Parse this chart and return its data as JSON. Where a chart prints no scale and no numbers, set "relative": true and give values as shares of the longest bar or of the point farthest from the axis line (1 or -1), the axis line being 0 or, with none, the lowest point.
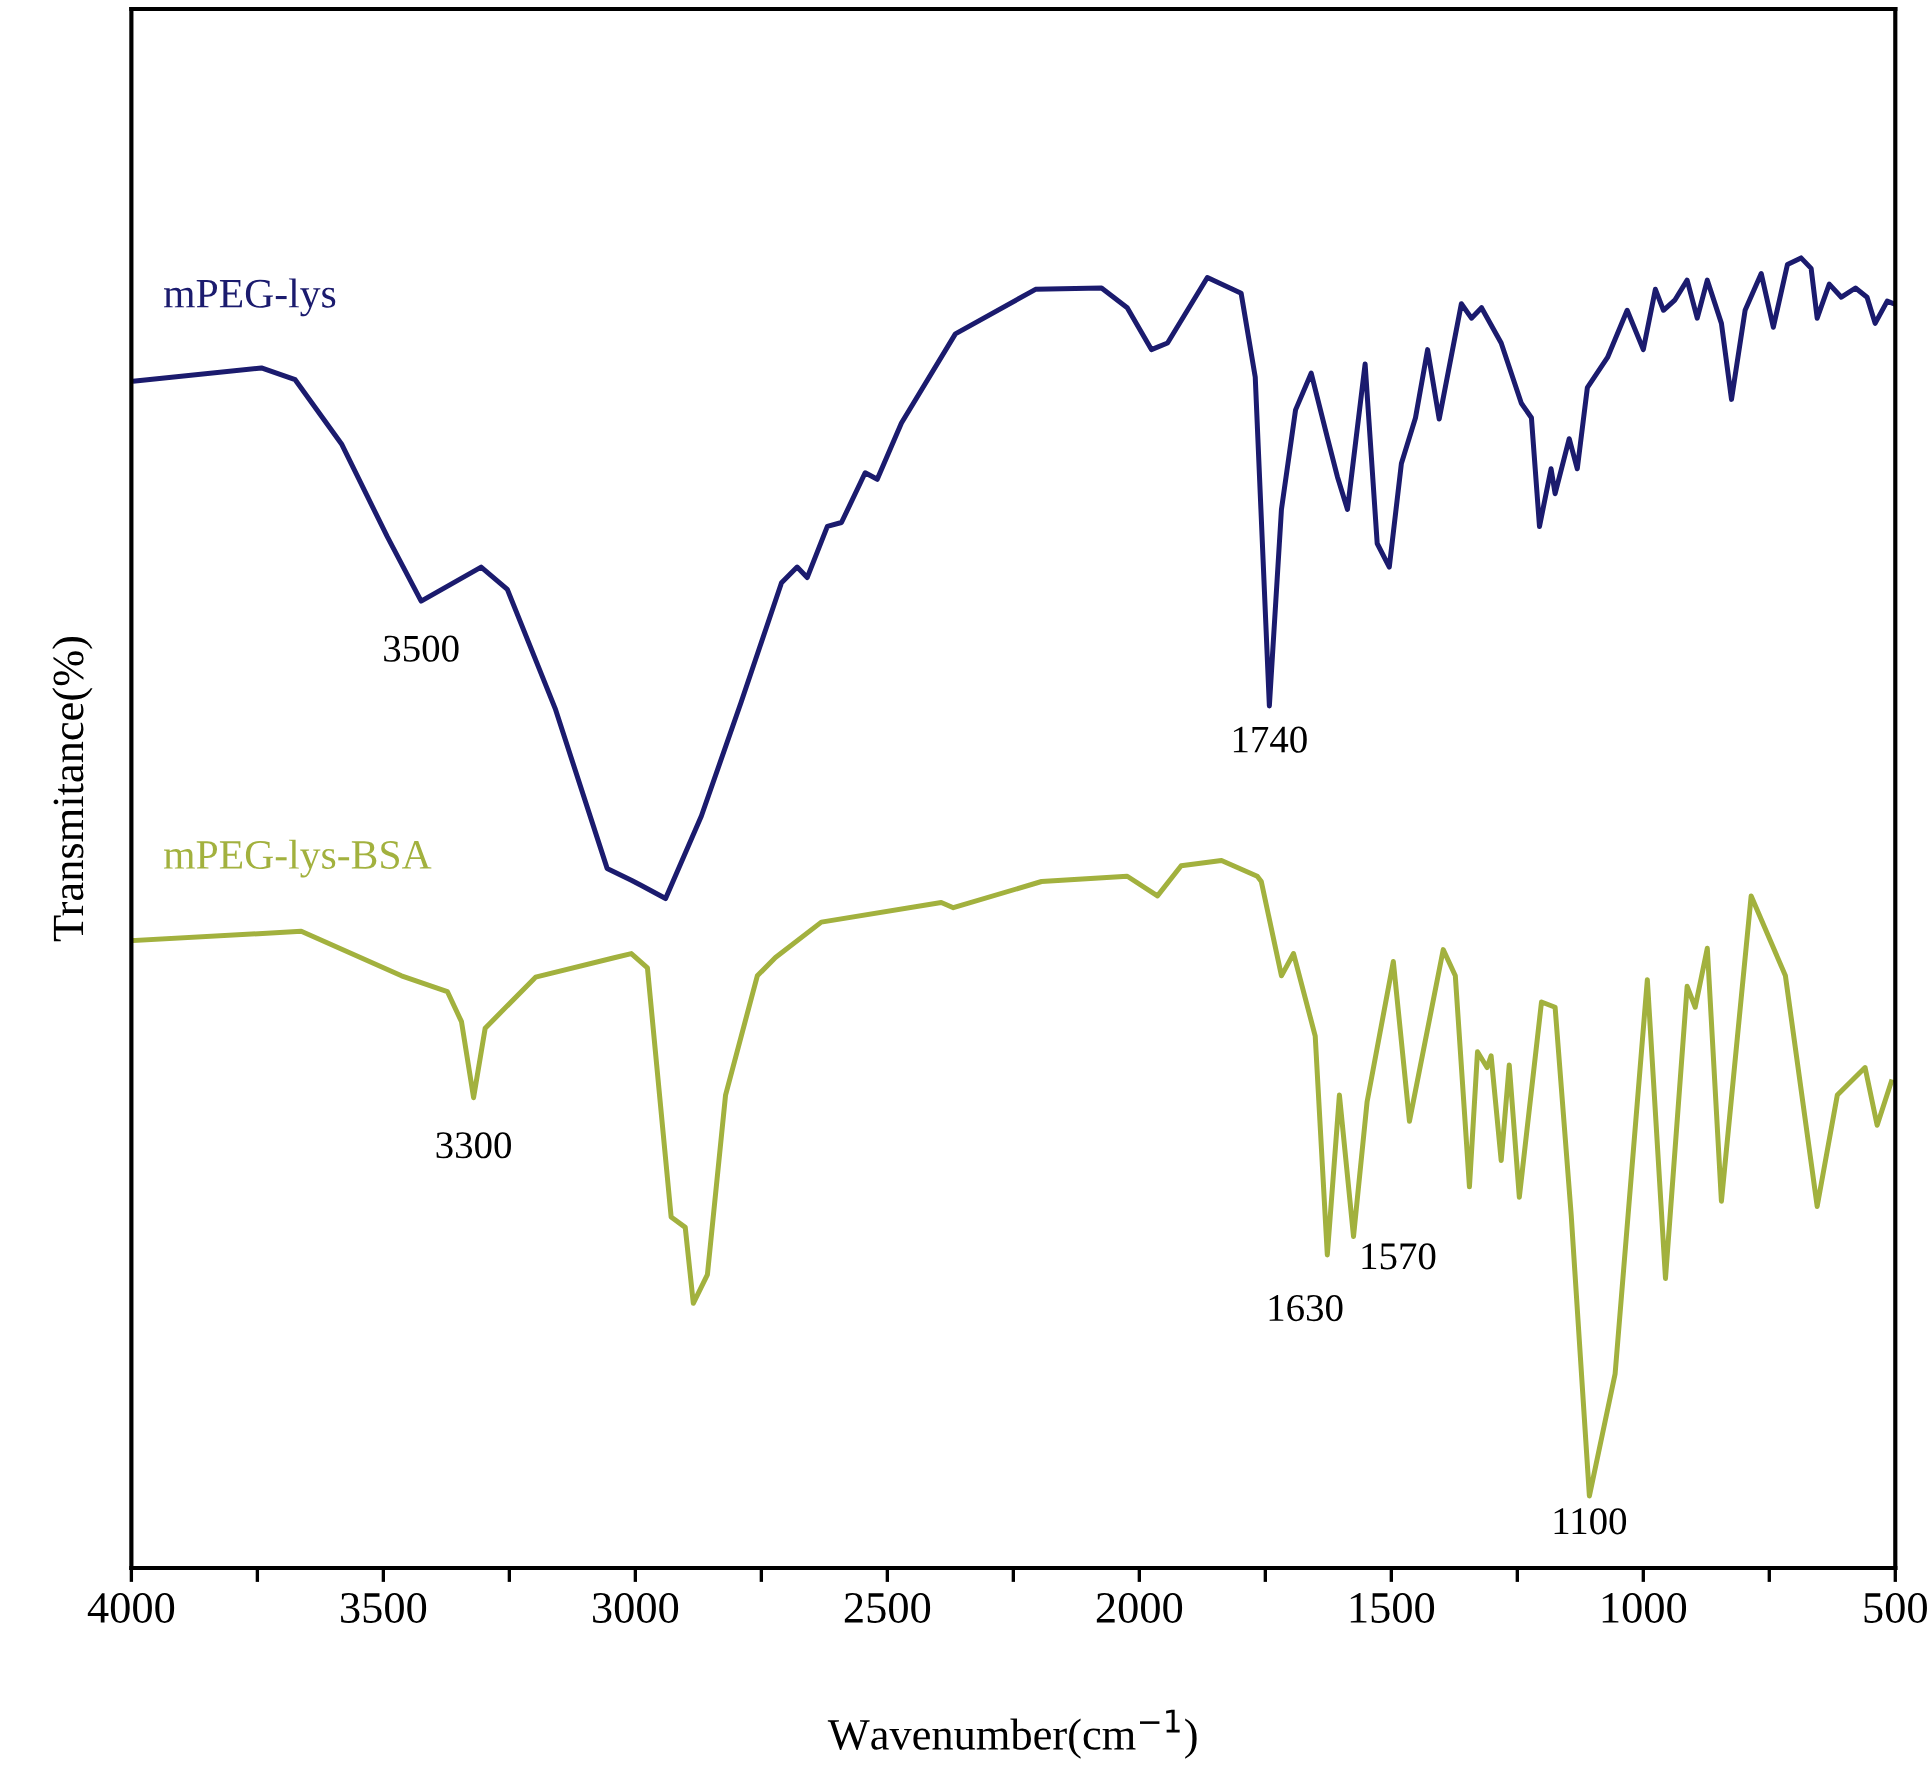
{
  "chart_data": {
    "type": "line",
    "relative": true,
    "xlabel": "Wavenumber(cm$^{−1}$)",
    "ylabel": "Transmitance(%)",
    "xlim": [
      4000,
      500
    ],
    "xticks": [
      4000,
      {
        "value": 3750,
        "label": null
      },
      3500,
      {
        "value": 3250,
        "label": null
      },
      3000,
      {
        "value": 2750,
        "label": null
      },
      2500,
      {
        "value": 2250,
        "label": null
      },
      2000,
      {
        "value": 1750,
        "label": null
      },
      1500,
      {
        "value": 1250,
        "label": null
      },
      1000,
      {
        "value": 750,
        "label": null
      },
      500
    ],
    "grid": false,
    "legend": false,
    "tick_labels": "x",
    "line_style": "solid",
    "marker": "none",
    "series": [
      {
        "name": "mPEG-lys",
        "color": "#1b1b6e",
        "x": [
          3992,
          3742,
          3675,
          3583,
          3492,
          3425,
          3306,
          3254,
          3159,
          3056,
          3008,
          2988,
          2940,
          2869,
          2790,
          2710,
          2679,
          2659,
          2619,
          2591,
          2544,
          2520,
          2472,
          2365,
          2206,
          2075,
          2024,
          1976,
          1944,
          1865,
          1798,
          1770,
          1742,
          1718,
          1690,
          1659,
          1627,
          1607,
          1587,
          1552,
          1528,
          1504,
          1480,
          1452,
          1428,
          1405,
          1361,
          1341,
          1321,
          1282,
          1242,
          1222,
          1206,
          1183,
          1175,
          1147,
          1131,
          1111,
          1071,
          1032,
          1000,
          976,
          960,
          937,
          913,
          893,
          873,
          845,
          825,
          798,
          766,
          742,
          714,
          687,
          667,
          655,
          631,
          607,
          579,
          556,
          540,
          516,
          503
        ],
        "values": [
          0.906,
          0.916,
          0.907,
          0.858,
          0.787,
          0.738,
          0.764,
          0.747,
          0.656,
          0.534,
          0.525,
          0.521,
          0.511,
          0.574,
          0.661,
          0.752,
          0.764,
          0.756,
          0.795,
          0.798,
          0.836,
          0.831,
          0.874,
          0.942,
          0.976,
          0.977,
          0.962,
          0.93,
          0.935,
          0.985,
          0.973,
          0.909,
          0.658,
          0.808,
          0.884,
          0.912,
          0.863,
          0.833,
          0.808,
          0.919,
          0.782,
          0.764,
          0.843,
          0.878,
          0.93,
          0.877,
          0.965,
          0.954,
          0.962,
          0.935,
          0.889,
          0.878,
          0.795,
          0.839,
          0.82,
          0.862,
          0.839,
          0.901,
          0.924,
          0.96,
          0.93,
          0.976,
          0.96,
          0.968,
          0.983,
          0.954,
          0.983,
          0.95,
          0.892,
          0.96,
          0.988,
          0.947,
          0.995,
          1.0,
          0.992,
          0.954,
          0.98,
          0.97,
          0.977,
          0.97,
          0.95,
          0.967,
          0.965
        ]
      },
      {
        "name": "mPEG-lys-BSA",
        "color": "#a2b13e",
        "x": [
          3992,
          3663,
          3464,
          3373,
          3345,
          3321,
          3298,
          3198,
          3040,
          3008,
          2976,
          2929,
          2901,
          2885,
          2857,
          2821,
          2758,
          2722,
          2631,
          2393,
          2369,
          2194,
          2024,
          1964,
          1917,
          1837,
          1766,
          1758,
          1718,
          1694,
          1651,
          1627,
          1603,
          1575,
          1548,
          1496,
          1464,
          1397,
          1373,
          1345,
          1329,
          1310,
          1302,
          1282,
          1266,
          1246,
          1202,
          1175,
          1143,
          1107,
          1056,
          992,
          956,
          913,
          897,
          873,
          845,
          786,
          718,
          655,
          615,
          560,
          536,
          508
        ],
        "values": [
          0.479,
          0.486,
          0.452,
          0.44,
          0.417,
          0.359,
          0.412,
          0.451,
          0.466,
          0.469,
          0.458,
          0.268,
          0.26,
          0.202,
          0.224,
          0.361,
          0.452,
          0.466,
          0.493,
          0.508,
          0.504,
          0.524,
          0.528,
          0.513,
          0.536,
          0.54,
          0.528,
          0.524,
          0.452,
          0.469,
          0.406,
          0.239,
          0.361,
          0.253,
          0.356,
          0.463,
          0.341,
          0.472,
          0.452,
          0.291,
          0.394,
          0.382,
          0.391,
          0.311,
          0.384,
          0.283,
          0.432,
          0.428,
          0.269,
          0.055,
          0.148,
          0.449,
          0.221,
          0.444,
          0.428,
          0.473,
          0.28,
          0.513,
          0.452,
          0.276,
          0.361,
          0.382,
          0.338,
          0.371
        ]
      }
    ],
    "annotations": [
      {
        "text": "3500",
        "x": 3425,
        "y": 0.738
      },
      {
        "text": "1740",
        "x": 1742,
        "y": 0.658
      },
      {
        "text": "3300",
        "x": 3321,
        "y": 0.359
      },
      {
        "text": "1630",
        "x": 1627,
        "y": 0.239
      },
      {
        "text": "1570",
        "x": 1575,
        "y": 0.253
      },
      {
        "text": "1100",
        "x": 1107,
        "y": 0.055
      }
    ]
  }
}
